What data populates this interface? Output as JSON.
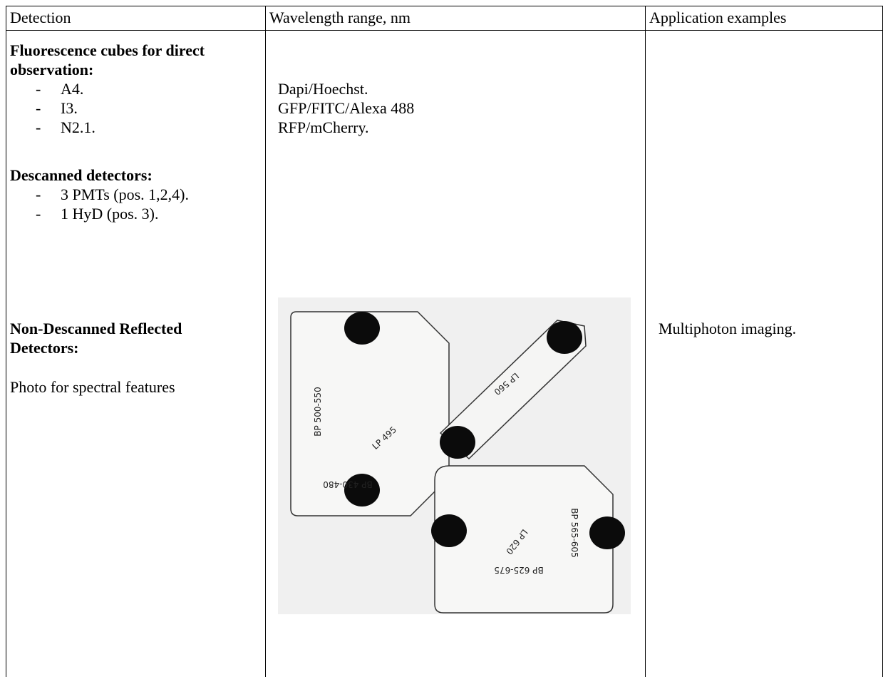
{
  "header": [
    "Detection",
    "Wavelength range, nm",
    "Application examples"
  ],
  "detection": {
    "fluorescence_title": "Fluorescence cubes for direct observation:",
    "fluorescence_items": [
      "A4.",
      "I3.",
      "N2.1."
    ],
    "descanned_title": "Descanned detectors:",
    "descanned_items": [
      "3 PMTs (pos. 1,2,4).",
      "1 HyD (pos. 3)."
    ],
    "non_descanned_title": "Non-Descanned Reflected Detectors:",
    "photo_note": "Photo for spectral features"
  },
  "wavelength": {
    "fluorescence_ranges": [
      "Dapi/Hoechst.",
      "GFP/FITC/Alexa 488",
      "RFP/mCherry."
    ],
    "photo_labels": [
      "BP 500-550",
      "LP 495",
      "BP 430-480",
      "LP 560",
      "BP 565-605",
      "LP 620",
      "BP 625-675"
    ]
  },
  "applications": {
    "non_descanned": "Multiphoton imaging."
  }
}
